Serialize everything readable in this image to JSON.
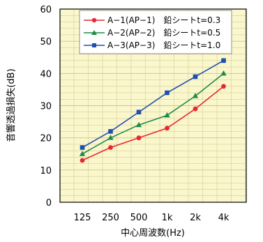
{
  "chart_data": {
    "type": "line",
    "categories": [
      "125",
      "250",
      "500",
      "1k",
      "2k",
      "4k"
    ],
    "xlabel": "中心周波数(Hz)",
    "ylabel": "音響透過損失(dB)",
    "ylim": [
      0,
      60
    ],
    "yticks": [
      0,
      10,
      20,
      30,
      40,
      50,
      60
    ],
    "grid": true,
    "plot_background": "#fbf7cd",
    "grid_color": "#c9c48e",
    "legend_position": "top",
    "series": [
      {
        "name": "A−1(AP−1)　鉛シートt=0.3",
        "color": "#e8282e",
        "marker": "circle",
        "values": [
          13,
          17,
          20,
          23,
          29,
          36
        ]
      },
      {
        "name": "A−2(AP−2)　鉛シートt=0.5",
        "color": "#1f8a4a",
        "marker": "triangle",
        "values": [
          15,
          20,
          24,
          27,
          33,
          40
        ]
      },
      {
        "name": "A−3(AP−3)　鉛シートt=1.0",
        "color": "#1f4fb0",
        "marker": "square",
        "values": [
          17,
          22,
          28,
          34,
          39,
          44
        ]
      }
    ]
  }
}
